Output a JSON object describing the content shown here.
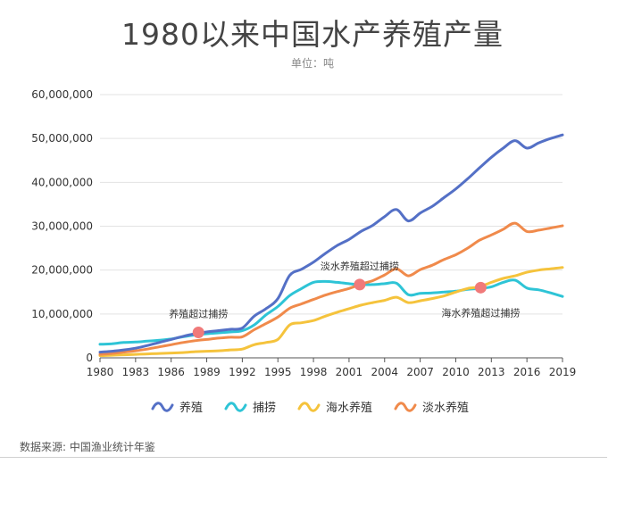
{
  "chart_data": {
    "type": "line",
    "title": "1980以来中国水产养殖产量",
    "subtitle": "单位：吨",
    "xlabel": "",
    "ylabel": "",
    "x": [
      1980,
      1981,
      1982,
      1983,
      1984,
      1985,
      1986,
      1987,
      1988,
      1989,
      1990,
      1991,
      1992,
      1993,
      1994,
      1995,
      1996,
      1997,
      1998,
      1999,
      2000,
      2001,
      2002,
      2003,
      2004,
      2005,
      2006,
      2007,
      2008,
      2009,
      2010,
      2011,
      2012,
      2013,
      2014,
      2015,
      2016,
      2017,
      2018,
      2019
    ],
    "xticks": [
      1980,
      1983,
      1986,
      1989,
      1992,
      1995,
      1998,
      2001,
      2004,
      2007,
      2010,
      2013,
      2016,
      2019
    ],
    "xtick_labels": [
      "1980",
      "1983",
      "1986",
      "1989",
      "1992",
      "1995",
      "1998",
      "2001",
      "2004",
      "2007",
      "2010",
      "2013",
      "2016",
      "2019"
    ],
    "ylim": [
      0,
      60000000
    ],
    "yticks": [
      0,
      10000000,
      20000000,
      30000000,
      40000000,
      50000000,
      60000000
    ],
    "ytick_labels": [
      "0",
      "10,000,000",
      "20,000,000",
      "30,000,000",
      "40,000,000",
      "50,000,000",
      "60,000,000"
    ],
    "grid": "horizontal",
    "legend_position": "bottom",
    "series": [
      {
        "name": "养殖",
        "color": "#5470c6",
        "values": [
          1300000,
          1500000,
          1800000,
          2200000,
          2800000,
          3500000,
          4200000,
          4900000,
          5500000,
          5900000,
          6200000,
          6500000,
          6800000,
          9500000,
          11200000,
          13500000,
          18800000,
          20200000,
          21800000,
          23800000,
          25600000,
          27000000,
          28800000,
          30200000,
          32200000,
          33800000,
          31200000,
          33000000,
          34500000,
          36500000,
          38500000,
          40800000,
          43300000,
          45700000,
          47800000,
          49500000,
          47800000,
          49000000,
          50000000,
          50800000
        ]
      },
      {
        "name": "捕捞",
        "color": "#2ec4d6",
        "values": [
          3100000,
          3200000,
          3500000,
          3600000,
          3800000,
          4000000,
          4300000,
          4800000,
          5200000,
          5500000,
          5700000,
          5900000,
          6200000,
          7500000,
          9800000,
          11700000,
          14200000,
          15800000,
          17200000,
          17400000,
          17200000,
          16900000,
          16700000,
          16700000,
          16900000,
          17000000,
          14400000,
          14700000,
          14800000,
          15000000,
          15200000,
          15600000,
          15800000,
          16200000,
          17200000,
          17700000,
          15900000,
          15500000,
          14800000,
          14000000
        ]
      },
      {
        "name": "海水养殖",
        "color": "#f5c33c",
        "values": [
          500000,
          600000,
          700000,
          800000,
          900000,
          1000000,
          1100000,
          1200000,
          1400000,
          1500000,
          1600000,
          1800000,
          2000000,
          3000000,
          3500000,
          4200000,
          7500000,
          8000000,
          8500000,
          9500000,
          10400000,
          11200000,
          12000000,
          12600000,
          13100000,
          13800000,
          12600000,
          13000000,
          13500000,
          14100000,
          15000000,
          15800000,
          16200000,
          17200000,
          18100000,
          18700000,
          19500000,
          20000000,
          20300000,
          20600000
        ]
      },
      {
        "name": "淡水养殖",
        "color": "#f08a4b",
        "values": [
          800000,
          1000000,
          1300000,
          1600000,
          2000000,
          2500000,
          3000000,
          3500000,
          3900000,
          4200000,
          4500000,
          4700000,
          4800000,
          6400000,
          7800000,
          9300000,
          11300000,
          12300000,
          13300000,
          14300000,
          15100000,
          15800000,
          16800000,
          17600000,
          18900000,
          20300000,
          18700000,
          20100000,
          21100000,
          22400000,
          23500000,
          25000000,
          26800000,
          28000000,
          29300000,
          30700000,
          28800000,
          29100000,
          29600000,
          30100000
        ]
      }
    ],
    "annotations": [
      {
        "text": "养殖超过捕捞",
        "x": 1988.3,
        "y": 5800000,
        "label_side": "above"
      },
      {
        "text": "淡水养殖超过捕捞",
        "x": 2001.9,
        "y": 16700000,
        "label_side": "above"
      },
      {
        "text": "海水养殖超过捕捞",
        "x": 2012.1,
        "y": 16000000,
        "label_side": "below"
      }
    ],
    "annotation_color": "#f07a7a"
  },
  "source_text": "数据来源: 中国渔业统计年鉴"
}
